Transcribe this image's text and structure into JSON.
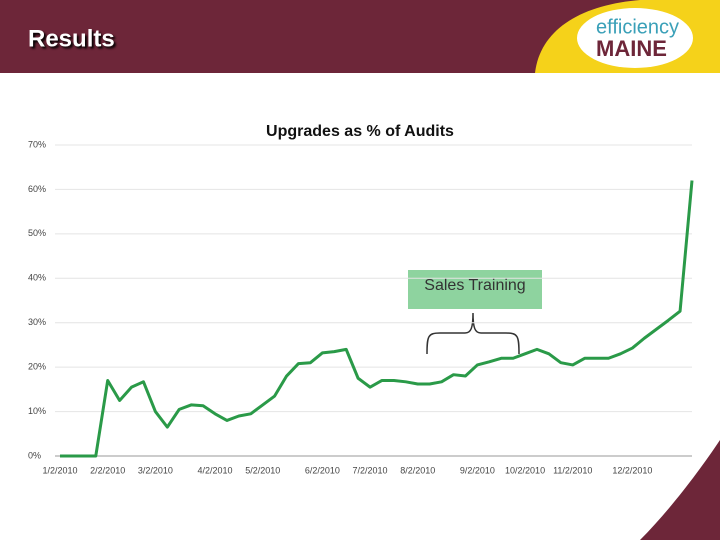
{
  "header": {
    "title": "Results",
    "logo": [
      "efficiency",
      "MAINE"
    ]
  },
  "chart_data": {
    "type": "line",
    "title": "Upgrades as % of Audits",
    "annotation": "Sales Training",
    "categories": [
      "1/2/2010",
      null,
      null,
      null,
      "2/2/2010",
      null,
      null,
      null,
      "3/2/2010",
      null,
      null,
      null,
      null,
      "4/2/2010",
      null,
      null,
      null,
      "5/2/2010",
      null,
      null,
      null,
      null,
      "6/2/2010",
      null,
      null,
      null,
      "7/2/2010",
      null,
      null,
      null,
      "8/2/2010",
      null,
      null,
      null,
      null,
      "9/2/2010",
      null,
      null,
      null,
      "10/2/2010",
      null,
      null,
      null,
      "11/2/2010",
      null,
      null,
      null,
      null,
      "12/2/2010",
      null,
      null,
      null,
      null,
      null
    ],
    "series": [
      {
        "name": "Upgrades as % of Audits",
        "color": "#2a9a48",
        "values": [
          0,
          0,
          0,
          0,
          17,
          12.5,
          15.5,
          16.7,
          10,
          6.5,
          10.5,
          11.5,
          11.3,
          9.5,
          8,
          9,
          9.5,
          11.5,
          13.5,
          18,
          20.8,
          21,
          23.2,
          23.5,
          24,
          17.5,
          15.5,
          17,
          17,
          16.7,
          16.2,
          16.2,
          16.7,
          18.3,
          18,
          20.5,
          21.2,
          22,
          22,
          23,
          24,
          23,
          21,
          20.5,
          22,
          22,
          22,
          23,
          24.3,
          26.5,
          28.5,
          30.5,
          32.6,
          62
        ]
      }
    ],
    "ylim": [
      0,
      70
    ],
    "yticks": [
      {
        "value": 0,
        "label": "0%"
      },
      {
        "value": 10,
        "label": "10%"
      },
      {
        "value": 20,
        "label": "20%"
      },
      {
        "value": 30,
        "label": "30%"
      },
      {
        "value": 40,
        "label": "40%"
      },
      {
        "value": 50,
        "label": "50%"
      },
      {
        "value": 60,
        "label": "60%"
      },
      {
        "value": 70,
        "label": "70%"
      }
    ],
    "grid": true
  }
}
